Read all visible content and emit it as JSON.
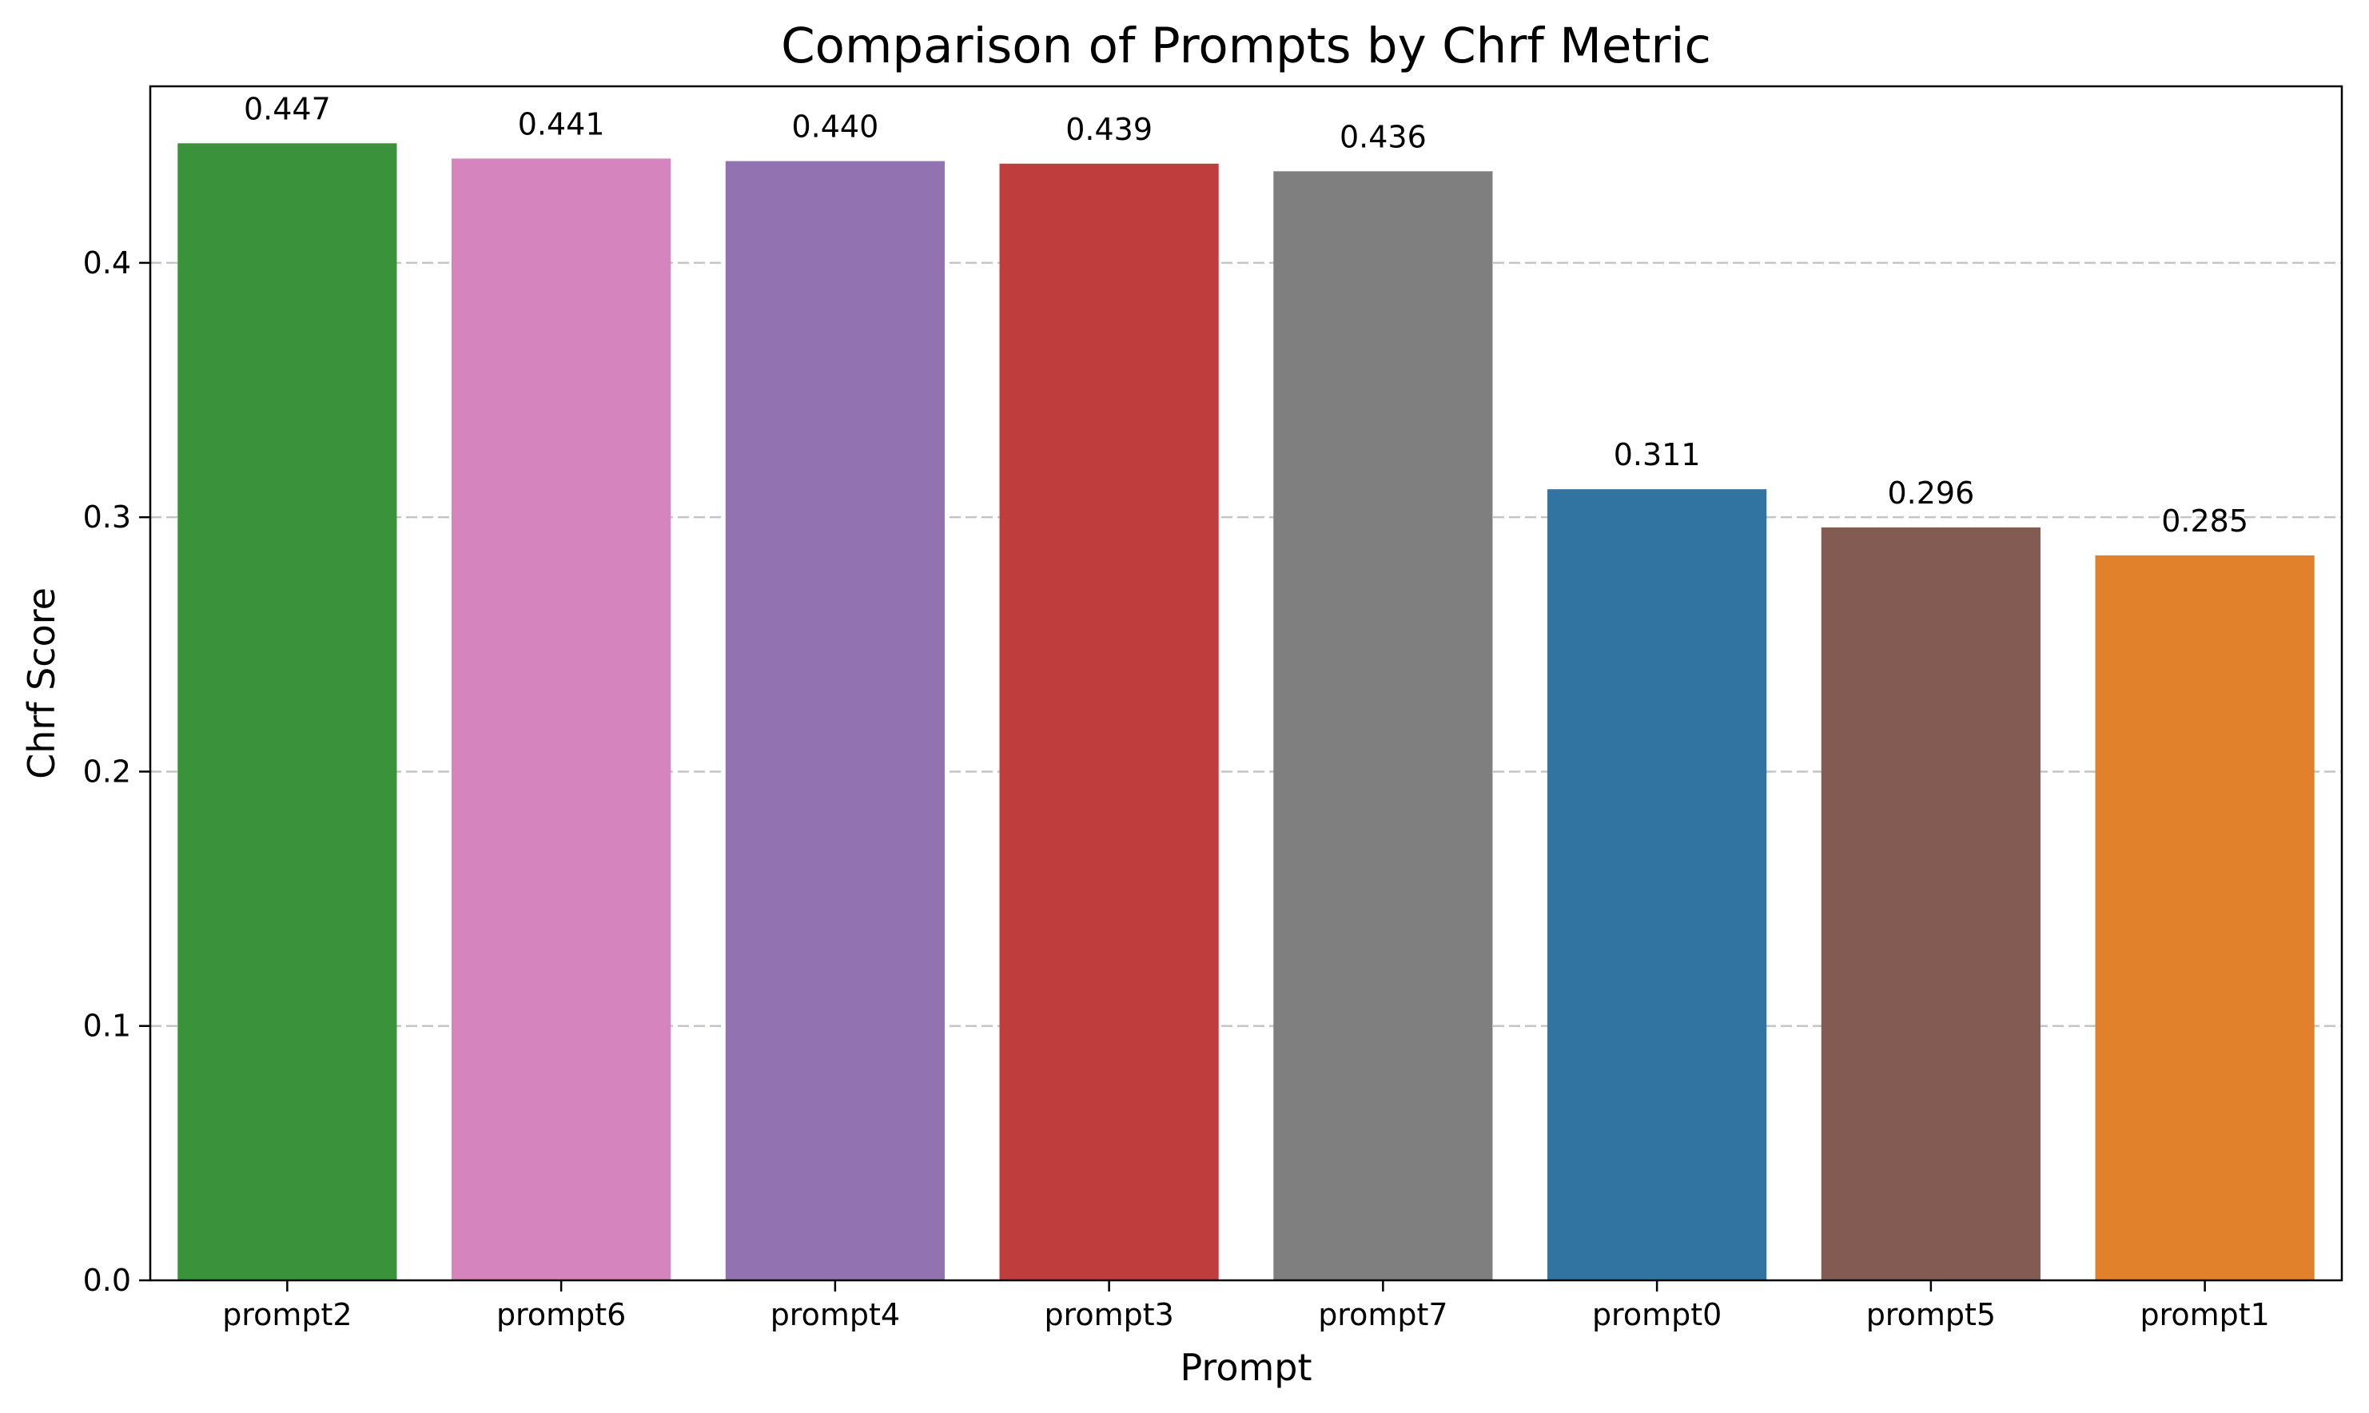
{
  "chart_data": {
    "type": "bar",
    "title": "Comparison of Prompts by Chrf Metric",
    "xlabel": "Prompt",
    "ylabel": "Chrf Score",
    "categories": [
      "prompt2",
      "prompt6",
      "prompt4",
      "prompt3",
      "prompt7",
      "prompt0",
      "prompt5",
      "prompt1"
    ],
    "values": [
      0.447,
      0.441,
      0.44,
      0.439,
      0.436,
      0.311,
      0.296,
      0.285
    ],
    "data_labels": [
      "0.447",
      "0.441",
      "0.440",
      "0.439",
      "0.436",
      "0.311",
      "0.296",
      "0.285"
    ],
    "colors": [
      "#3a923a",
      "#d684bd",
      "#9372b2",
      "#c03d3e",
      "#7f7f7f",
      "#3274a1",
      "#845b53",
      "#e1812c"
    ],
    "yticks": [
      0.0,
      0.1,
      0.2,
      0.3,
      0.4
    ],
    "ytick_labels": [
      "0.0",
      "0.1",
      "0.2",
      "0.3",
      "0.4"
    ],
    "ylim": [
      0,
      0.4694
    ],
    "grid": "horizontal dashed",
    "legend": "none"
  }
}
